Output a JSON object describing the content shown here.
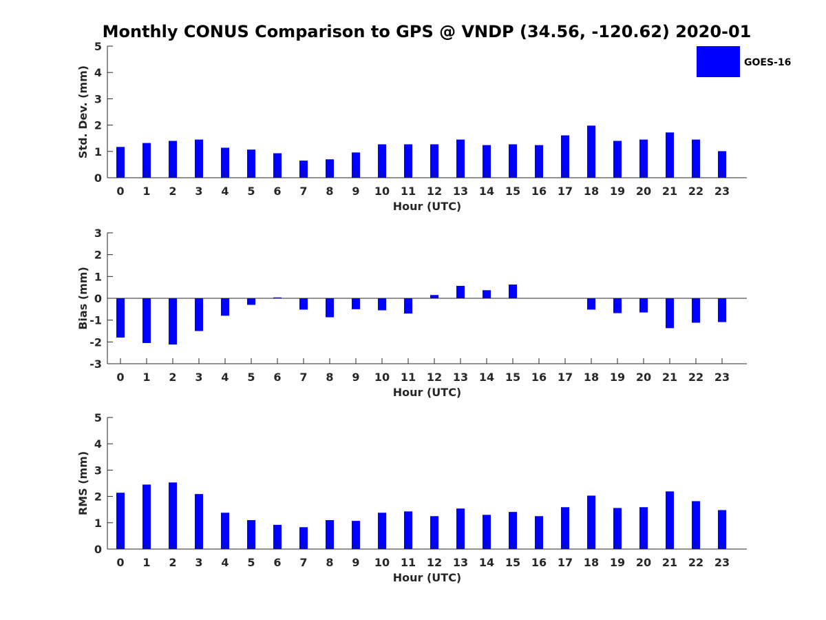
{
  "title": "Monthly CONUS Comparison to GPS @ VNDP (34.56, -120.62) 2020-01",
  "colors": {
    "bar": "#0000ff",
    "axis": "#262626",
    "background": "#ffffff"
  },
  "legend": {
    "label": "GOES-16",
    "placement": "top-right"
  },
  "chart_data": [
    {
      "type": "bar",
      "name": "std-dev",
      "xlabel": "Hour (UTC)",
      "ylabel": "Std. Dev. (mm)",
      "ylim": [
        0,
        5
      ],
      "yticks": [
        0,
        1,
        2,
        3,
        4,
        5
      ],
      "categories": [
        "0",
        "1",
        "2",
        "3",
        "4",
        "5",
        "6",
        "7",
        "8",
        "9",
        "10",
        "11",
        "12",
        "13",
        "14",
        "15",
        "16",
        "17",
        "18",
        "19",
        "20",
        "21",
        "22",
        "23"
      ],
      "series": [
        {
          "name": "GOES-16",
          "values": [
            1.17,
            1.32,
            1.4,
            1.45,
            1.14,
            1.07,
            0.93,
            0.65,
            0.7,
            0.96,
            1.27,
            1.27,
            1.27,
            1.45,
            1.24,
            1.27,
            1.24,
            1.61,
            1.98,
            1.4,
            1.45,
            1.72,
            1.45,
            1.01
          ]
        }
      ]
    },
    {
      "type": "bar",
      "name": "bias",
      "xlabel": "Hour (UTC)",
      "ylabel": "Bias (mm)",
      "ylim": [
        -3,
        3
      ],
      "yticks": [
        -3,
        -2,
        -1,
        0,
        1,
        2,
        3
      ],
      "categories": [
        "0",
        "1",
        "2",
        "3",
        "4",
        "5",
        "6",
        "7",
        "8",
        "9",
        "10",
        "11",
        "12",
        "13",
        "14",
        "15",
        "16",
        "17",
        "18",
        "19",
        "20",
        "21",
        "22",
        "23"
      ],
      "series": [
        {
          "name": "GOES-16",
          "values": [
            -1.8,
            -2.05,
            -2.12,
            -1.5,
            -0.8,
            -0.3,
            0.04,
            -0.52,
            -0.87,
            -0.5,
            -0.55,
            -0.7,
            0.15,
            0.57,
            0.37,
            0.63,
            0.0,
            0.0,
            -0.52,
            -0.68,
            -0.65,
            -1.37,
            -1.12,
            -1.09
          ]
        }
      ]
    },
    {
      "type": "bar",
      "name": "rms",
      "xlabel": "Hour (UTC)",
      "ylabel": "RMS (mm)",
      "ylim": [
        0,
        5
      ],
      "yticks": [
        0,
        1,
        2,
        3,
        4,
        5
      ],
      "categories": [
        "0",
        "1",
        "2",
        "3",
        "4",
        "5",
        "6",
        "7",
        "8",
        "9",
        "10",
        "11",
        "12",
        "13",
        "14",
        "15",
        "16",
        "17",
        "18",
        "19",
        "20",
        "21",
        "22",
        "23"
      ],
      "series": [
        {
          "name": "GOES-16",
          "values": [
            2.14,
            2.45,
            2.53,
            2.09,
            1.38,
            1.1,
            0.92,
            0.83,
            1.1,
            1.07,
            1.38,
            1.43,
            1.25,
            1.54,
            1.3,
            1.41,
            1.25,
            1.59,
            2.03,
            1.56,
            1.59,
            2.19,
            1.82,
            1.48
          ]
        }
      ]
    }
  ]
}
